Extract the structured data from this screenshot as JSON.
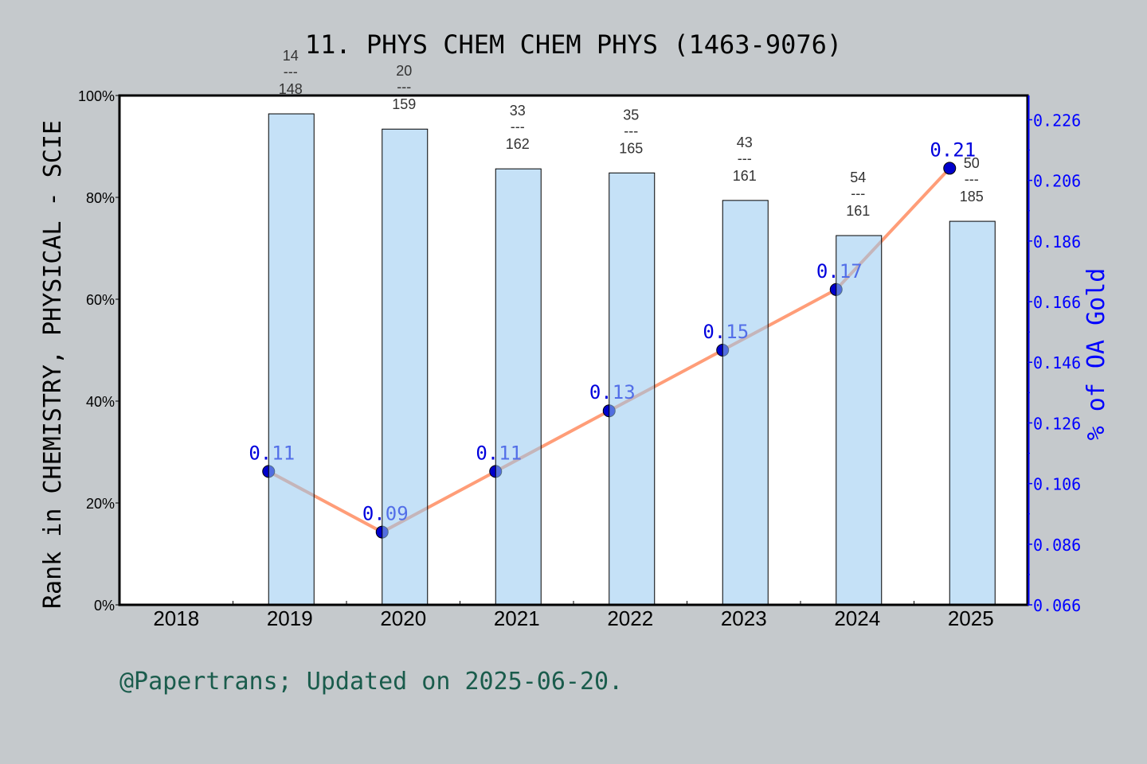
{
  "chart_data": {
    "type": "bar",
    "title": "11. PHYS CHEM CHEM PHYS (1463-9076)",
    "xlabel": "",
    "ylabel": "Rank in CHEMISTRY, PHYSICAL - SCIE",
    "y2label": "% of OA Gold",
    "categories": [
      "2018",
      "2019",
      "2020",
      "2021",
      "2022",
      "2023",
      "2024",
      "2025"
    ],
    "ylim": [
      0,
      100
    ],
    "yticks": [
      "0%",
      "20%",
      "40%",
      "60%",
      "80%",
      "100%"
    ],
    "y2lim": [
      0.066,
      0.234
    ],
    "y2ticks": [
      "0.066",
      "0.086",
      "0.106",
      "0.126",
      "0.146",
      "0.166",
      "0.186",
      "0.206",
      "0.226"
    ],
    "grid": false,
    "series": [
      {
        "type": "bar",
        "values": [
          null,
          96.4,
          93.4,
          85.6,
          84.8,
          79.4,
          72.5,
          75.3
        ],
        "labels": [
          null,
          [
            "14",
            "148"
          ],
          [
            "20",
            "159"
          ],
          [
            "33",
            "162"
          ],
          [
            "35",
            "165"
          ],
          [
            "43",
            "161"
          ],
          [
            "54",
            "161"
          ],
          [
            "50",
            "185"
          ]
        ],
        "color": "#c5e0f7"
      },
      {
        "type": "line",
        "axis": "right",
        "values": [
          null,
          0.11,
          0.09,
          0.11,
          0.13,
          0.15,
          0.17,
          0.21
        ],
        "labels": [
          null,
          "0.11",
          "0.09",
          "0.11",
          "0.13",
          "0.15",
          "0.17",
          "0.21"
        ],
        "color": "#ff9d78",
        "marker_color": "#0000cc"
      }
    ],
    "fraction_separator": "---"
  },
  "footer": "@Papertrans; Updated on 2025-06-20.",
  "colors": {
    "background": "#c5c9cc",
    "right_axis": "#0000ff",
    "footer": "#1a5c4c"
  }
}
